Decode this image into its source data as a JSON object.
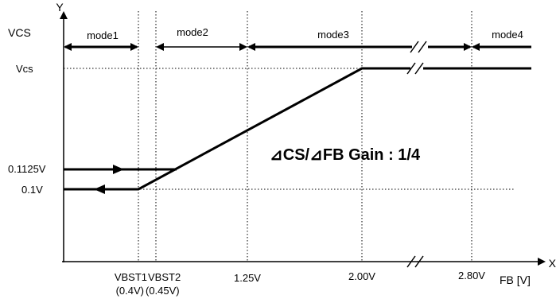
{
  "axes": {
    "y_axis_letter": "Y",
    "y_axis_title": "VCS",
    "x_axis_letter": "X",
    "x_axis_title": "FB [V]"
  },
  "modes": [
    "mode1",
    "mode2",
    "mode3",
    "mode4"
  ],
  "y_labels": {
    "vcs": "Vcs",
    "v01125": "0.1125V",
    "v01": "0.1V"
  },
  "x_labels": {
    "vbst1": "VBST1",
    "vbst1_value": "(0.4V)",
    "vbst2": "VBST2",
    "vbst2_value": "(0.45V)",
    "v125": "1.25V",
    "v200": "2.00V",
    "v280": "2.80V"
  },
  "gain_text": "⊿CS/⊿FB Gain : 1/4",
  "colors": {
    "line": "#000000",
    "grid": "#000000",
    "background": "#ffffff"
  }
}
